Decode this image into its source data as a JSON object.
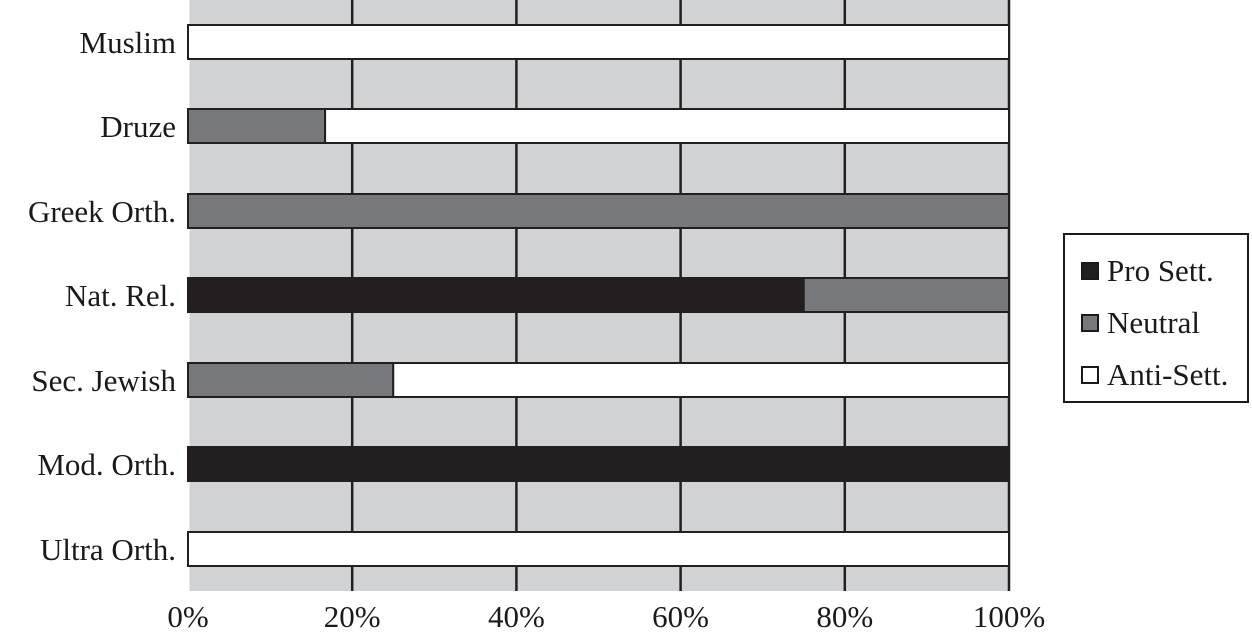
{
  "chart_data": {
    "type": "bar",
    "orientation": "horizontal",
    "stacked": true,
    "categories": [
      "Muslim",
      "Druze",
      "Greek Orth.",
      "Nat. Rel.",
      "Sec. Jewish",
      "Mod. Orth.",
      "Ultra Orth."
    ],
    "series": [
      {
        "name": "Pro Sett.",
        "values": [
          0,
          0,
          0,
          75,
          0,
          100,
          0
        ]
      },
      {
        "name": "Neutral",
        "values": [
          0,
          16.7,
          100,
          25,
          25,
          0,
          0
        ]
      },
      {
        "name": "Anti-Sett.",
        "values": [
          100,
          83.3,
          0,
          0,
          75,
          0,
          100
        ]
      }
    ],
    "x_ticks": [
      "0%",
      "20%",
      "40%",
      "60%",
      "80%",
      "100%"
    ],
    "xlim": [
      0,
      100
    ],
    "grid": true,
    "legend_position": "right",
    "colors": {
      "Pro Sett.": "#231f20",
      "Neutral": "#77787b",
      "Anti-Sett.": "#ffffff",
      "background": "#d1d2d4",
      "grid": "#231f20"
    }
  }
}
